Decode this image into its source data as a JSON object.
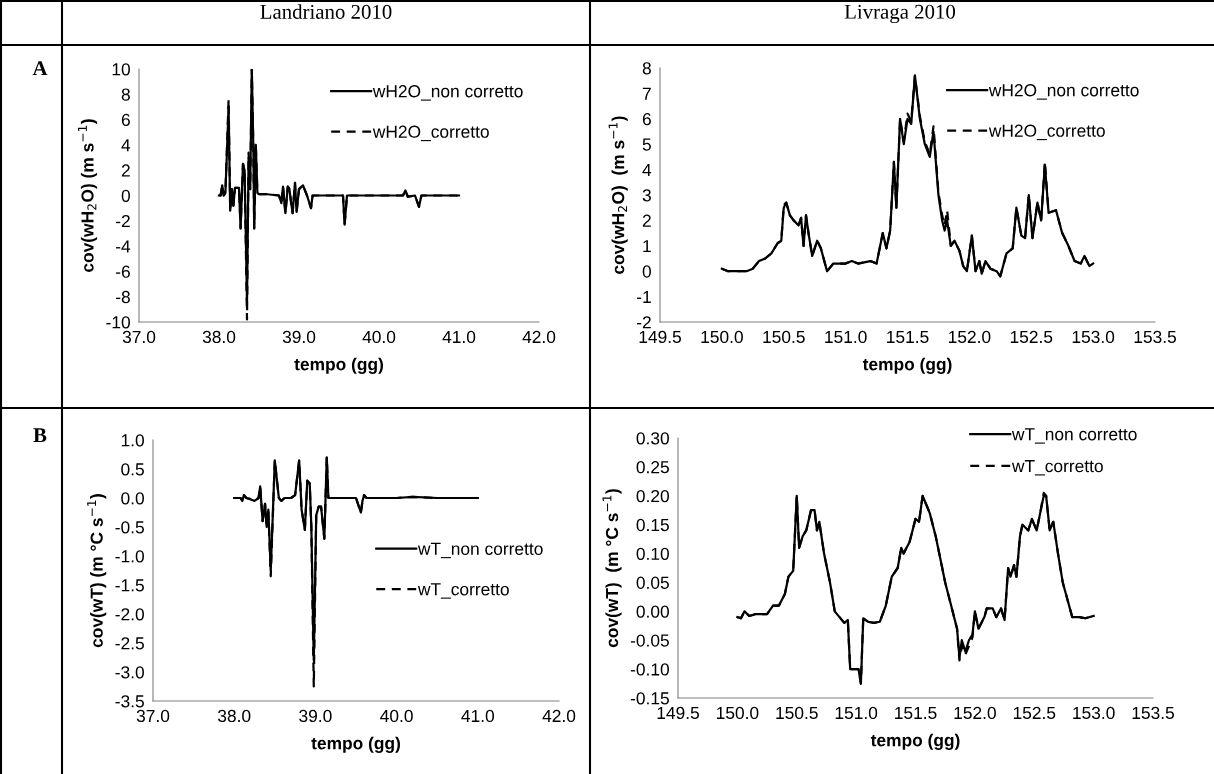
{
  "chart_data": [
    {
      "type": "line",
      "title": "Landriano 2010",
      "xlabel": "tempo (gg)",
      "ylabel": "cov(wH$_{2}$O) (m s$^{−1}$)",
      "annotations": [
        "A"
      ],
      "legend": "top right",
      "xlim": [
        37,
        42
      ],
      "xticks": [
        {
          "value": 37,
          "label": "37.0"
        },
        {
          "value": 38,
          "label": "38.0"
        },
        {
          "value": 39,
          "label": "39.0"
        },
        {
          "value": 40,
          "label": "40.0"
        },
        {
          "value": 41,
          "label": "41.0"
        },
        {
          "value": 42,
          "label": "42.0"
        }
      ],
      "ylim": [
        -10,
        10
      ],
      "yticks": [
        -10,
        -8,
        -6,
        -4,
        -2,
        0,
        2,
        4,
        6,
        8,
        10
      ],
      "x": [
        38.0,
        38.02,
        38.04,
        38.06,
        38.08,
        38.12,
        38.14,
        38.16,
        38.18,
        38.2,
        38.25,
        38.27,
        38.3,
        38.32,
        38.35,
        38.37,
        38.39,
        38.41,
        38.43,
        38.44,
        38.46,
        38.48,
        38.5,
        38.6,
        38.75,
        38.78,
        38.8,
        38.83,
        38.86,
        38.88,
        38.9,
        38.92,
        38.95,
        38.97,
        39.0,
        39.05,
        39.1,
        39.15,
        39.17,
        39.5,
        39.55,
        39.57,
        39.6,
        39.8,
        40.0,
        40.3,
        40.33,
        40.36,
        40.45,
        40.5,
        40.53,
        41.0
      ],
      "series": [
        {
          "name": "wH2O_non corretto",
          "color": "#000000",
          "line_style": "solid",
          "values": [
            0,
            0,
            0.8,
            0,
            0.2,
            7,
            -1.2,
            0.5,
            -0.8,
            0.6,
            0.6,
            -2.6,
            2.5,
            2,
            -8.4,
            3,
            0.5,
            10,
            3.5,
            -2.6,
            4,
            0.2,
            0.1,
            0.1,
            0,
            -0.6,
            0.7,
            -1.4,
            0.7,
            0.5,
            -0.5,
            -1.4,
            1,
            -1.3,
            0.5,
            0.8,
            0,
            -1,
            0,
            0,
            0,
            -2.3,
            0,
            0,
            0,
            0,
            0.4,
            -0.1,
            0,
            -0.9,
            0,
            0
          ]
        },
        {
          "name": "wH2O_corretto",
          "color": "#000000",
          "line_style": "dashed",
          "values": [
            0,
            0,
            0.8,
            0,
            0.2,
            7.6,
            -1.2,
            0.5,
            -0.8,
            0.6,
            0.6,
            -2.6,
            2.5,
            2,
            -9.8,
            3.4,
            0.5,
            10,
            3.5,
            -2.6,
            4,
            0.2,
            0.1,
            0.1,
            0,
            -0.6,
            0.7,
            -1.4,
            0.7,
            0.5,
            -0.5,
            -1.4,
            1,
            -1.3,
            0.5,
            0.8,
            0,
            -1,
            0,
            0,
            0,
            -2.3,
            0,
            0,
            0,
            0,
            0.4,
            -0.1,
            0,
            -0.9,
            0,
            0
          ]
        }
      ]
    },
    {
      "type": "line",
      "title": "Livraga 2010",
      "xlabel": "tempo (gg)",
      "ylabel": "cov(wH$_{2}$O)  (m s$^{−1}$)",
      "legend": "top right",
      "xlim": [
        149.5,
        153.5
      ],
      "xticks": [
        149.5,
        {
          "value": 150,
          "label": "150.0"
        },
        150.5,
        {
          "value": 151,
          "label": "151.0"
        },
        151.5,
        {
          "value": 152,
          "label": "152.0"
        },
        152.5,
        {
          "value": 153,
          "label": "153.0"
        },
        153.5
      ],
      "ylim": [
        -2,
        8
      ],
      "yticks": [
        -2,
        -1,
        0,
        1,
        2,
        3,
        4,
        5,
        6,
        7,
        8
      ],
      "x": [
        150.0,
        150.05,
        150.2,
        150.25,
        150.3,
        150.35,
        150.4,
        150.45,
        150.48,
        150.5,
        150.52,
        150.55,
        150.58,
        150.62,
        150.64,
        150.66,
        150.68,
        150.7,
        150.73,
        150.77,
        150.8,
        150.85,
        150.9,
        151.0,
        151.05,
        151.1,
        151.2,
        151.25,
        151.3,
        151.33,
        151.36,
        151.39,
        151.41,
        151.44,
        151.47,
        151.5,
        151.53,
        151.56,
        151.6,
        151.64,
        151.68,
        151.71,
        151.75,
        151.78,
        151.8,
        151.82,
        151.85,
        151.88,
        151.92,
        151.95,
        151.98,
        152.02,
        152.05,
        152.08,
        152.1,
        152.13,
        152.17,
        152.22,
        152.25,
        152.3,
        152.35,
        152.38,
        152.42,
        152.45,
        152.48,
        152.51,
        152.55,
        152.58,
        152.61,
        152.64,
        152.7,
        152.75,
        152.8,
        152.85,
        152.9,
        152.93,
        152.97,
        153.0
      ],
      "series": [
        {
          "name": "wH2O_non corretto",
          "color": "#000000",
          "line_style": "solid",
          "values": [
            0.1,
            0,
            0,
            0.1,
            0.4,
            0.5,
            0.7,
            1.1,
            1.2,
            2.5,
            2.7,
            2.2,
            2.0,
            1.8,
            2.1,
            1.0,
            2.2,
            1.5,
            0.6,
            1.2,
            0.9,
            0,
            0.3,
            0.3,
            0.4,
            0.3,
            0.4,
            0.3,
            1.5,
            0.9,
            1.6,
            4.3,
            2.5,
            6.0,
            5.0,
            6.0,
            5.8,
            7.7,
            6.0,
            5.0,
            4.5,
            5.5,
            3.0,
            2.0,
            1.6,
            2.0,
            1.0,
            1.2,
            0.8,
            0.2,
            0,
            1.4,
            0,
            0.4,
            -0.1,
            0.4,
            0.1,
            0,
            -0.2,
            0.7,
            0.9,
            2.5,
            1.4,
            1.3,
            3.0,
            1.3,
            2.7,
            2.0,
            4.2,
            2.3,
            2.4,
            1.5,
            1.0,
            0.4,
            0.3,
            0.6,
            0.2,
            0.3
          ]
        },
        {
          "name": "wH2O_corretto",
          "color": "#000000",
          "line_style": "dashed",
          "values": [
            0.1,
            0,
            0,
            0.1,
            0.4,
            0.5,
            0.7,
            1.1,
            1.2,
            2.6,
            2.7,
            2.2,
            2.0,
            1.8,
            2.1,
            1.0,
            2.2,
            1.5,
            0.6,
            1.2,
            0.9,
            0,
            0.3,
            0.3,
            0.4,
            0.3,
            0.4,
            0.3,
            1.5,
            0.9,
            1.6,
            4.3,
            2.5,
            6.0,
            5.1,
            6.2,
            5.9,
            7.7,
            6.1,
            5.1,
            4.6,
            5.7,
            3.1,
            2.2,
            1.8,
            2.4,
            1.0,
            1.2,
            0.8,
            0.2,
            0,
            1.4,
            0,
            0.4,
            -0.1,
            0.4,
            0.1,
            0,
            -0.2,
            0.7,
            0.9,
            2.5,
            1.4,
            1.3,
            3.0,
            1.3,
            2.7,
            2.0,
            4.3,
            2.3,
            2.4,
            1.5,
            1.0,
            0.4,
            0.3,
            0.6,
            0.2,
            0.3
          ]
        }
      ]
    },
    {
      "type": "line",
      "xlabel": "tempo (gg)",
      "ylabel": "cov(wT) (m °C s$^{−1}$)",
      "annotations": [
        "B"
      ],
      "legend": "center right",
      "xlim": [
        37,
        42
      ],
      "xticks": [
        {
          "value": 37,
          "label": "37.0"
        },
        {
          "value": 38,
          "label": "38.0"
        },
        {
          "value": 39,
          "label": "39.0"
        },
        {
          "value": 40,
          "label": "40.0"
        },
        {
          "value": 41,
          "label": "41.0"
        },
        {
          "value": 42,
          "label": "42.0"
        }
      ],
      "ylim": [
        -3.5,
        1.0
      ],
      "yticks": [
        -3.5,
        {
          "value": -3,
          "label": "-3.0"
        },
        -2.5,
        {
          "value": -2,
          "label": "-2.0"
        },
        -1.5,
        {
          "value": -1,
          "label": "-1.0"
        },
        -0.5,
        {
          "value": 0,
          "label": "0.0"
        },
        0.5,
        {
          "value": 1,
          "label": "1.0"
        }
      ],
      "x": [
        38.0,
        38.08,
        38.1,
        38.12,
        38.15,
        38.2,
        38.25,
        38.3,
        38.32,
        38.35,
        38.38,
        38.4,
        38.42,
        38.45,
        38.5,
        38.55,
        38.58,
        38.62,
        38.7,
        38.75,
        38.8,
        38.83,
        38.87,
        38.9,
        38.93,
        38.95,
        38.98,
        39.01,
        39.04,
        39.07,
        39.11,
        39.14,
        39.16,
        39.5,
        39.56,
        39.58,
        39.6,
        39.63,
        40.0,
        40.2,
        40.5,
        41.0
      ],
      "series": [
        {
          "name": "wT_non corretto",
          "color": "#000000",
          "line_style": "solid",
          "values": [
            0,
            0,
            -0.05,
            0.05,
            0,
            -0.02,
            -0.05,
            0,
            0.2,
            -0.4,
            -0.1,
            -0.5,
            -0.2,
            -1.25,
            0.65,
            0,
            -0.05,
            0,
            0,
            0.05,
            0.65,
            -0.2,
            -0.55,
            0.3,
            0.25,
            -0.5,
            -2.8,
            -0.3,
            -0.15,
            -0.15,
            -0.7,
            0.7,
            0,
            0,
            -0.25,
            -0.05,
            0.05,
            0,
            0,
            0.02,
            0,
            0
          ]
        },
        {
          "name": "wT_corretto",
          "color": "#000000",
          "line_style": "dashed",
          "values": [
            0,
            0,
            -0.05,
            0.05,
            0,
            -0.02,
            -0.05,
            0,
            0.2,
            -0.4,
            -0.1,
            -0.5,
            -0.2,
            -1.35,
            0.65,
            0,
            -0.05,
            0,
            0,
            0.05,
            0.65,
            -0.2,
            -0.55,
            0.3,
            0.25,
            -0.5,
            -3.25,
            -0.3,
            -0.15,
            -0.15,
            -0.7,
            0.7,
            0,
            0,
            -0.25,
            -0.05,
            0.05,
            0,
            0,
            0.02,
            0,
            0
          ]
        }
      ]
    },
    {
      "type": "line",
      "xlabel": "tempo (gg)",
      "ylabel": "cov(wT)  (m °C s$^{−1}$)",
      "legend": "top right",
      "xlim": [
        149.5,
        153.5
      ],
      "xticks": [
        149.5,
        {
          "value": 150,
          "label": "150.0"
        },
        150.5,
        {
          "value": 151,
          "label": "151.0"
        },
        151.5,
        {
          "value": 152,
          "label": "152.0"
        },
        152.5,
        {
          "value": 153,
          "label": "153.0"
        },
        153.5
      ],
      "ylim": [
        -0.15,
        0.3
      ],
      "yticks": [
        {
          "value": -0.15,
          "label": "-0.15"
        },
        {
          "value": -0.1,
          "label": "-0.10"
        },
        {
          "value": -0.05,
          "label": "-0.05"
        },
        {
          "value": 0,
          "label": "0.00"
        },
        {
          "value": 0.05,
          "label": "0.05"
        },
        {
          "value": 0.1,
          "label": "0.10"
        },
        {
          "value": 0.15,
          "label": "0.15"
        },
        {
          "value": 0.2,
          "label": "0.20"
        },
        {
          "value": 0.25,
          "label": "0.25"
        },
        {
          "value": 0.3,
          "label": "0.30"
        }
      ],
      "x": [
        150.0,
        150.03,
        150.06,
        150.1,
        150.15,
        150.25,
        150.3,
        150.35,
        150.4,
        150.43,
        150.47,
        150.5,
        150.52,
        150.55,
        150.58,
        150.62,
        150.65,
        150.67,
        150.69,
        150.73,
        150.78,
        150.82,
        150.86,
        150.9,
        150.93,
        150.95,
        151.02,
        151.04,
        151.06,
        151.1,
        151.15,
        151.2,
        151.25,
        151.3,
        151.35,
        151.38,
        151.4,
        151.45,
        151.5,
        151.53,
        151.56,
        151.62,
        151.67,
        151.7,
        151.75,
        151.8,
        151.85,
        151.87,
        151.89,
        151.92,
        151.95,
        151.98,
        152.0,
        152.03,
        152.08,
        152.1,
        152.15,
        152.18,
        152.22,
        152.25,
        152.28,
        152.3,
        152.33,
        152.35,
        152.38,
        152.4,
        152.45,
        152.48,
        152.52,
        152.55,
        152.58,
        152.6,
        152.63,
        152.66,
        152.7,
        152.74,
        152.78,
        152.82,
        152.88,
        152.93,
        153.0
      ],
      "series": [
        {
          "name": "wT_non corretto",
          "color": "#000000",
          "line_style": "solid",
          "values": [
            -0.01,
            -0.012,
            0,
            -0.008,
            -0.005,
            -0.005,
            0.01,
            0.01,
            0.03,
            0.06,
            0.07,
            0.2,
            0.11,
            0.13,
            0.14,
            0.175,
            0.175,
            0.14,
            0.155,
            0.1,
            0.05,
            0.0,
            -0.01,
            -0.02,
            -0.015,
            -0.1,
            -0.1,
            -0.125,
            -0.012,
            -0.018,
            -0.02,
            -0.018,
            0.01,
            0.06,
            0.075,
            0.11,
            0.1,
            0.12,
            0.16,
            0.155,
            0.2,
            0.17,
            0.13,
            0.1,
            0.05,
            0.01,
            -0.03,
            -0.08,
            -0.05,
            -0.07,
            -0.05,
            -0.04,
            0.0,
            -0.03,
            -0.01,
            0.005,
            0.005,
            -0.01,
            0.005,
            -0.015,
            0.075,
            0.06,
            0.08,
            0.06,
            0.13,
            0.15,
            0.14,
            0.16,
            0.14,
            0.17,
            0.2,
            0.2,
            0.14,
            0.155,
            0.1,
            0.05,
            0.02,
            -0.01,
            -0.01,
            -0.012,
            -0.008
          ]
        },
        {
          "name": "wT_corretto",
          "color": "#000000",
          "line_style": "dashed",
          "values": [
            -0.01,
            -0.012,
            0,
            -0.008,
            -0.005,
            -0.005,
            0.01,
            0.01,
            0.03,
            0.06,
            0.07,
            0.2,
            0.11,
            0.13,
            0.14,
            0.175,
            0.175,
            0.14,
            0.155,
            0.1,
            0.05,
            0.0,
            -0.01,
            -0.02,
            -0.015,
            -0.1,
            -0.1,
            -0.125,
            -0.012,
            -0.018,
            -0.02,
            -0.018,
            0.01,
            0.06,
            0.075,
            0.11,
            0.1,
            0.12,
            0.16,
            0.155,
            0.2,
            0.17,
            0.13,
            0.1,
            0.05,
            0.01,
            -0.03,
            -0.085,
            -0.06,
            -0.075,
            -0.06,
            -0.045,
            0.0,
            -0.03,
            -0.01,
            0.005,
            0.005,
            -0.01,
            0.005,
            -0.015,
            0.075,
            0.06,
            0.08,
            0.06,
            0.13,
            0.15,
            0.14,
            0.16,
            0.14,
            0.17,
            0.205,
            0.2,
            0.14,
            0.155,
            0.1,
            0.05,
            0.02,
            -0.01,
            -0.01,
            -0.012,
            -0.008
          ]
        }
      ]
    }
  ]
}
